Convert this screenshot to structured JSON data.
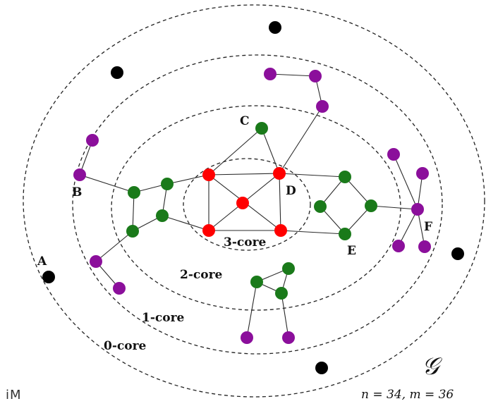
{
  "diagram": {
    "core_labels": [
      "3-core",
      "2-core",
      "1-core",
      "0-core"
    ],
    "node_labels": [
      "A",
      "B",
      "C",
      "D",
      "E",
      "F"
    ],
    "graph_symbol": "𝒢",
    "stats": "n = 34,  m = 36",
    "watermark": "iM",
    "colors": {
      "core3": "#ff0000",
      "core2": "#1a7a1a",
      "core1": "#8b0f9b",
      "core0": "#000000"
    }
  }
}
